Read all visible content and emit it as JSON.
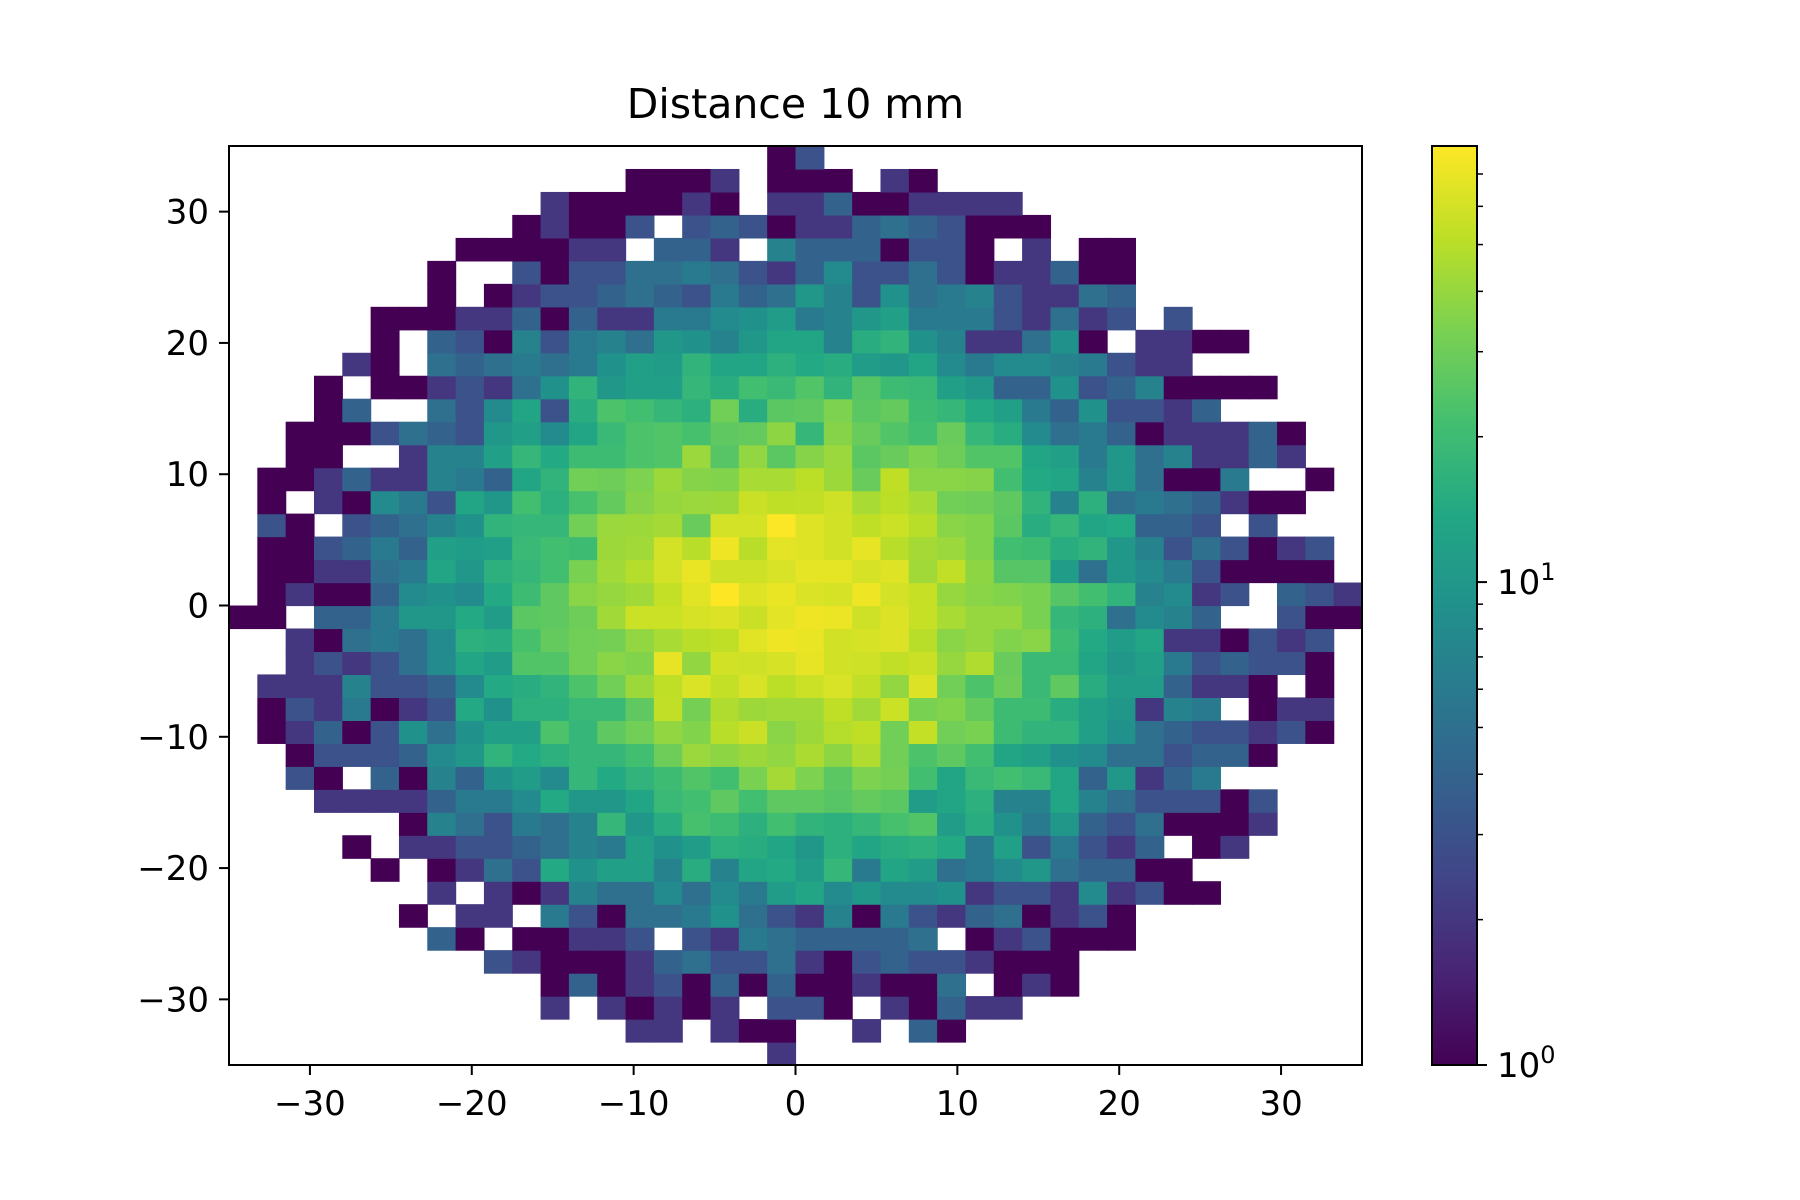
{
  "chart_data": {
    "type": "heatmap",
    "title": "Distance 10 mm",
    "xlabel": "",
    "ylabel": "",
    "xlim": [
      -35,
      35
    ],
    "ylim": [
      -35,
      35
    ],
    "x_ticks": [
      -30,
      -20,
      -10,
      0,
      10,
      20,
      30
    ],
    "x_tick_labels": [
      "−30",
      "−20",
      "−10",
      "0",
      "10",
      "20",
      "30"
    ],
    "y_ticks": [
      -30,
      -20,
      -10,
      0,
      10,
      20,
      30
    ],
    "y_tick_labels": [
      "−30",
      "−20",
      "−10",
      "0",
      "10",
      "20",
      "30"
    ],
    "bins": 40,
    "bin_width": 1.75,
    "distribution": "2D Gaussian counts inside a circular aperture of radius about 34 mm",
    "peak_center": [
      0,
      0
    ],
    "peak_count": 70,
    "colormap": "viridis",
    "color_scale": "log",
    "colorbar": {
      "min": 1,
      "max": 80,
      "major_ticks": [
        {
          "value": 1,
          "base": "10",
          "exp": "0"
        },
        {
          "value": 10,
          "base": "10",
          "exp": "1"
        }
      ],
      "minor_ticks": [
        2,
        3,
        4,
        5,
        6,
        7,
        8,
        9,
        20,
        30,
        40,
        50,
        60,
        70
      ]
    },
    "grid": false
  }
}
